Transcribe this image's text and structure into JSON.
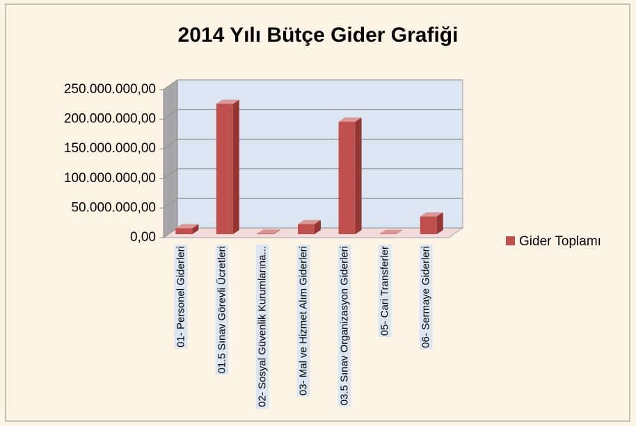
{
  "chart_data": {
    "type": "bar",
    "title": "2014 Yılı Bütçe Gider Grafiği",
    "categories": [
      "01- Personel Giderleri",
      "01.5 Sınav Görevli Ücretleri",
      "02- Sosyal Güvenlik Kurumlarına...",
      "03- Mal ve Hizmet Alım Giderleri",
      "03.5 Sınav Organizasyon Giderleri",
      "05- Cari Transferler",
      "06- Sermaye Giderleri"
    ],
    "series": [
      {
        "name": "Gider Toplamı",
        "color": "#c0504d",
        "values": [
          10000000,
          220000000,
          1000000,
          17000000,
          190000000,
          500000,
          30000000
        ]
      }
    ],
    "ylim": [
      0,
      250000000
    ],
    "yticks": [
      {
        "value": 0,
        "label": "0,00"
      },
      {
        "value": 50000000,
        "label": "50.000.000,00"
      },
      {
        "value": 100000000,
        "label": "100.000.000,00"
      },
      {
        "value": 150000000,
        "label": "150.000.000,00"
      },
      {
        "value": 200000000,
        "label": "200.000.000,00"
      },
      {
        "value": 250000000,
        "label": "250.000.000,00"
      }
    ],
    "grid": true,
    "legend": "right"
  }
}
